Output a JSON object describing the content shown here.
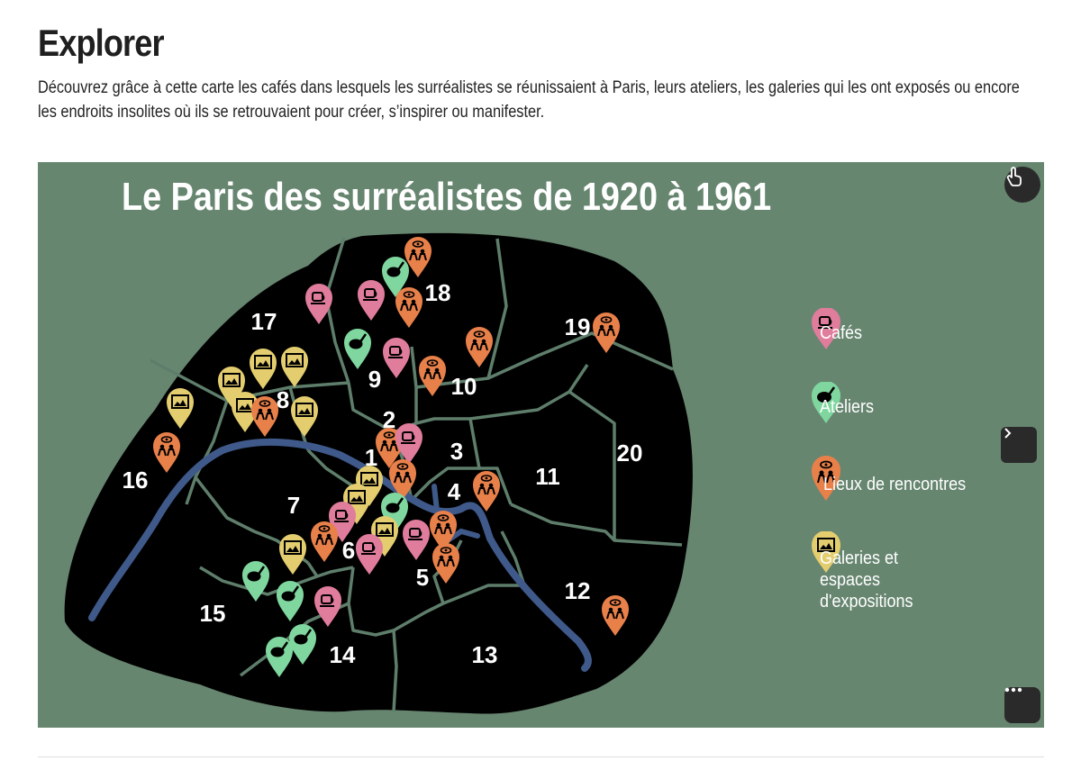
{
  "page": {
    "heading": "Explorer",
    "intro": "Découvrez grâce à cette carte les cafés dans lesquels les surréalistes se réunissaient à Paris, leurs ateliers, les galeries qui les ont exposés ou encore les endroits insolites où ils se retrouvaient pour créer, s’inspirer ou manifester."
  },
  "map": {
    "title": "Le Paris des surréalistes de 1920 à 1961",
    "arrondissements": [
      "1",
      "2",
      "3",
      "4",
      "5",
      "6",
      "7",
      "8",
      "9",
      "10",
      "11",
      "12",
      "13",
      "14",
      "15",
      "16",
      "17",
      "18",
      "19",
      "20"
    ],
    "legend": [
      {
        "label": "Cafés",
        "category": "cafe"
      },
      {
        "label": "Ateliers",
        "category": "atelier"
      },
      {
        "label": "Lieux de rencontres",
        "category": "rencontre"
      },
      {
        "label": "Galeries et espaces d'expositions",
        "category": "galerie"
      }
    ],
    "colors": {
      "background": "#678670",
      "land": "#000000",
      "streets": "#5e7e6b",
      "river": "#3f5a8a",
      "cafe": "#e07c9c",
      "atelier": "#7fd79f",
      "rencontre": "#e8804a",
      "galerie": "#e3cd6f"
    },
    "icons": {
      "cafe": "coffee-cup-icon",
      "atelier": "palette-brush-icon",
      "rencontre": "people-eye-icon",
      "galerie": "framed-picture-icon"
    },
    "controls": {
      "touch": "hand-pointer-icon",
      "next": "chevron-right-icon",
      "more": "more-dots-icon"
    }
  }
}
